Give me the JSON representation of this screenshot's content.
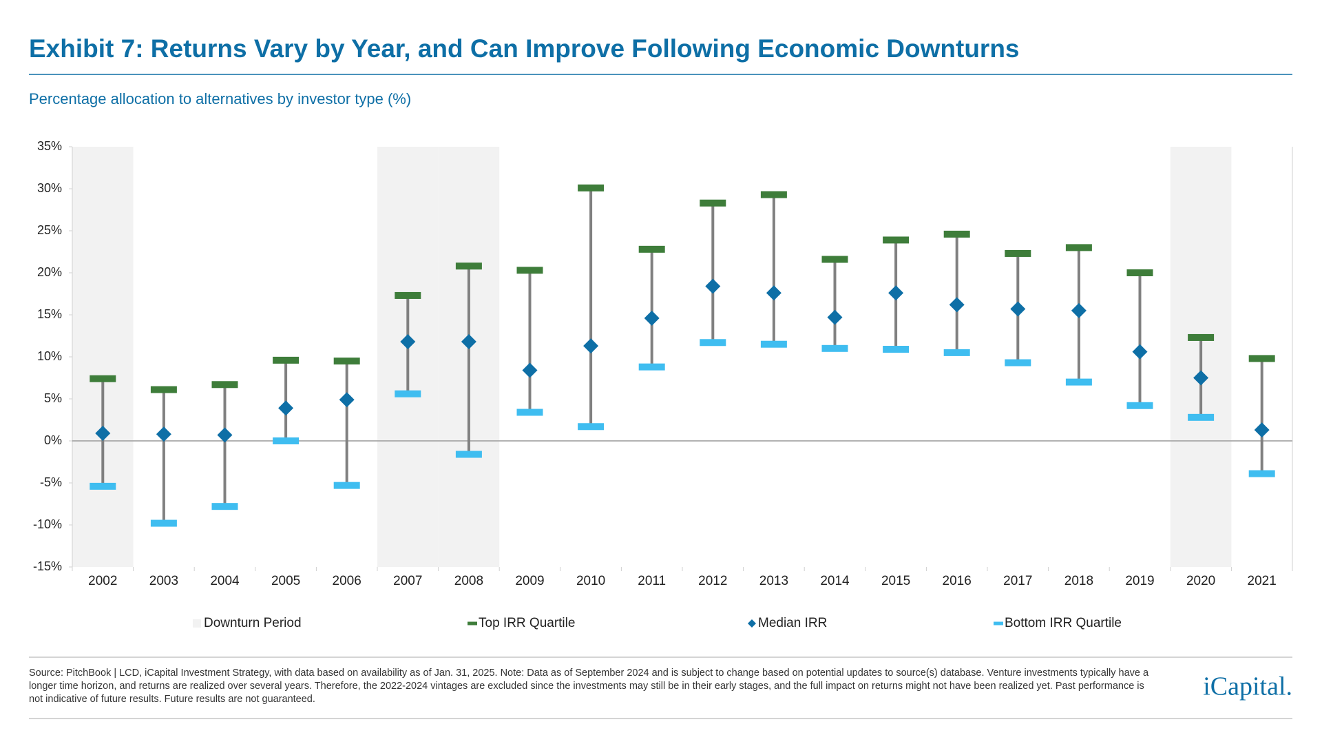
{
  "chart_data": {
    "type": "range-median",
    "title": "Exhibit 7: Returns Vary by Year, and Can Improve Following Economic Downturns",
    "subtitle": "Percentage allocation to alternatives by investor type (%)",
    "categories": [
      "2002",
      "2003",
      "2004",
      "2005",
      "2006",
      "2007",
      "2008",
      "2009",
      "2010",
      "2011",
      "2012",
      "2013",
      "2014",
      "2015",
      "2016",
      "2017",
      "2018",
      "2019",
      "2020",
      "2021"
    ],
    "series": [
      {
        "name": "Downturn Period",
        "color": "#f2f2f2",
        "highlight": [
          true,
          false,
          false,
          false,
          false,
          true,
          true,
          false,
          false,
          false,
          false,
          false,
          false,
          false,
          false,
          false,
          false,
          false,
          true,
          false
        ]
      },
      {
        "name": "Top IRR Quartile",
        "color": "#3e7d3a",
        "values": [
          7.4,
          6.1,
          6.7,
          9.6,
          9.5,
          17.3,
          20.8,
          20.3,
          30.1,
          22.8,
          28.3,
          29.3,
          21.6,
          23.9,
          24.6,
          22.3,
          23.0,
          20.0,
          12.3,
          9.8
        ]
      },
      {
        "name": "Median IRR",
        "color": "#0e6fa6",
        "values": [
          0.9,
          0.8,
          0.7,
          3.9,
          4.9,
          11.8,
          11.8,
          8.4,
          11.3,
          14.6,
          18.4,
          17.6,
          14.7,
          17.6,
          16.2,
          15.7,
          15.5,
          10.6,
          7.5,
          1.3
        ]
      },
      {
        "name": "Bottom IRR Quartile",
        "color": "#3fbdf0",
        "values": [
          -5.4,
          -9.8,
          -7.8,
          0.0,
          -5.3,
          5.6,
          -1.6,
          3.4,
          1.7,
          8.8,
          11.7,
          11.5,
          11.0,
          10.9,
          10.5,
          9.3,
          7.0,
          4.2,
          2.8,
          -3.9
        ]
      }
    ],
    "ylim": [
      -15,
      35
    ],
    "yticks": [
      {
        "value": 35,
        "label": "35%"
      },
      {
        "value": 30,
        "label": "30%"
      },
      {
        "value": 25,
        "label": "25%"
      },
      {
        "value": 20,
        "label": "20%"
      },
      {
        "value": 15,
        "label": "15%"
      },
      {
        "value": 10,
        "label": "10%"
      },
      {
        "value": 5,
        "label": "5%"
      },
      {
        "value": 0,
        "label": "0%"
      },
      {
        "value": -5,
        "label": "-5%"
      },
      {
        "value": -10,
        "label": "-10%"
      },
      {
        "value": -15,
        "label": "-15%"
      }
    ],
    "whisker_color": "#808080",
    "source": "Source: PitchBook | LCD, iCapital Investment Strategy, with data based on availability as of Jan. 31, 2025. Note: Data as of September 2024 and is subject to change based on potential updates to source(s) database. Venture investments typically have a longer time horizon, and returns are realized over several years. Therefore, the 2022-2024 vintages are excluded since the investments may still be in their early stages, and the full impact on returns might not have been realized yet. Past performance is not indicative of future results. Future results are not guaranteed.",
    "logo": "iCapital."
  }
}
